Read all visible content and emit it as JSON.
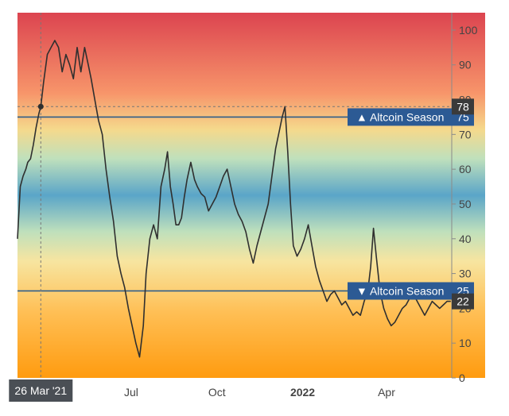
{
  "colors": {
    "series_line": "#2f2f2f",
    "marker_line": "#2e5c8a",
    "marker_label_bg": "#2c5a94",
    "value_badge_bg": "#3a3a3a",
    "crosshair": "#777777",
    "axis_text": "#444444",
    "gradient_top": "#dc4450",
    "gradient_mid": "#5aa5c8",
    "gradient_bottom": "#ff9b0f"
  },
  "chart_data": {
    "type": "line",
    "title": "",
    "xlabel": "",
    "ylabel": "",
    "ylim": [
      0,
      105
    ],
    "y_axis_side": "right",
    "yticks": [
      0,
      10,
      20,
      30,
      40,
      50,
      60,
      70,
      80,
      90,
      100
    ],
    "x_range": [
      "2021-03-01",
      "2022-06-10"
    ],
    "xticks": [
      {
        "date": "2021-07-01",
        "label": "Jul",
        "bold": false
      },
      {
        "date": "2021-10-01",
        "label": "Oct",
        "bold": false
      },
      {
        "date": "2022-01-01",
        "label": "2022",
        "bold": true
      },
      {
        "date": "2022-04-01",
        "label": "Apr",
        "bold": false
      }
    ],
    "background": "index gradient (red high, blue middle, orange low)",
    "grid": false,
    "legend": "none",
    "thresholds": [
      {
        "value": 75,
        "label": "▲ Altcoin Season",
        "value_label": "75"
      },
      {
        "value": 25,
        "label": "▼ Altcoin Season",
        "value_label": "25"
      }
    ],
    "crosshair": {
      "date": "2021-03-26",
      "date_label": "26 Mar '21",
      "value": 78,
      "value_label": "78"
    },
    "last_value": {
      "value": 22,
      "label": "22"
    },
    "series": [
      {
        "points": [
          [
            "2021-03-01",
            40
          ],
          [
            "2021-03-04",
            55
          ],
          [
            "2021-03-07",
            58
          ],
          [
            "2021-03-10",
            60
          ],
          [
            "2021-03-12",
            62
          ],
          [
            "2021-03-15",
            63
          ],
          [
            "2021-03-18",
            67
          ],
          [
            "2021-03-21",
            72
          ],
          [
            "2021-03-24",
            76
          ],
          [
            "2021-03-26",
            78
          ],
          [
            "2021-03-29",
            85
          ],
          [
            "2021-04-02",
            93
          ],
          [
            "2021-04-06",
            95
          ],
          [
            "2021-04-10",
            97
          ],
          [
            "2021-04-14",
            95
          ],
          [
            "2021-04-18",
            88
          ],
          [
            "2021-04-22",
            93
          ],
          [
            "2021-04-26",
            90
          ],
          [
            "2021-04-30",
            86
          ],
          [
            "2021-05-04",
            95
          ],
          [
            "2021-05-08",
            88
          ],
          [
            "2021-05-12",
            95
          ],
          [
            "2021-05-16",
            90
          ],
          [
            "2021-05-19",
            86
          ],
          [
            "2021-05-23",
            80
          ],
          [
            "2021-05-27",
            74
          ],
          [
            "2021-05-31",
            70
          ],
          [
            "2021-06-04",
            60
          ],
          [
            "2021-06-08",
            52
          ],
          [
            "2021-06-12",
            45
          ],
          [
            "2021-06-16",
            35
          ],
          [
            "2021-06-20",
            30
          ],
          [
            "2021-06-24",
            26
          ],
          [
            "2021-06-28",
            20
          ],
          [
            "2021-07-02",
            15
          ],
          [
            "2021-07-06",
            10
          ],
          [
            "2021-07-10",
            6
          ],
          [
            "2021-07-14",
            15
          ],
          [
            "2021-07-17",
            30
          ],
          [
            "2021-07-21",
            40
          ],
          [
            "2021-07-25",
            44
          ],
          [
            "2021-07-29",
            40
          ],
          [
            "2021-08-02",
            55
          ],
          [
            "2021-08-06",
            60
          ],
          [
            "2021-08-09",
            65
          ],
          [
            "2021-08-12",
            55
          ],
          [
            "2021-08-15",
            50
          ],
          [
            "2021-08-18",
            44
          ],
          [
            "2021-08-21",
            44
          ],
          [
            "2021-08-24",
            46
          ],
          [
            "2021-08-27",
            52
          ],
          [
            "2021-08-30",
            57
          ],
          [
            "2021-09-03",
            62
          ],
          [
            "2021-09-07",
            57
          ],
          [
            "2021-09-10",
            55
          ],
          [
            "2021-09-14",
            53
          ],
          [
            "2021-09-18",
            52
          ],
          [
            "2021-09-22",
            48
          ],
          [
            "2021-09-26",
            50
          ],
          [
            "2021-09-30",
            52
          ],
          [
            "2021-10-04",
            55
          ],
          [
            "2021-10-08",
            58
          ],
          [
            "2021-10-12",
            60
          ],
          [
            "2021-10-16",
            55
          ],
          [
            "2021-10-20",
            50
          ],
          [
            "2021-10-24",
            47
          ],
          [
            "2021-10-28",
            45
          ],
          [
            "2021-11-01",
            42
          ],
          [
            "2021-11-05",
            37
          ],
          [
            "2021-11-09",
            33
          ],
          [
            "2021-11-13",
            38
          ],
          [
            "2021-11-17",
            42
          ],
          [
            "2021-11-21",
            46
          ],
          [
            "2021-11-25",
            50
          ],
          [
            "2021-11-29",
            58
          ],
          [
            "2021-12-03",
            66
          ],
          [
            "2021-12-07",
            71
          ],
          [
            "2021-12-10",
            75
          ],
          [
            "2021-12-13",
            78
          ],
          [
            "2021-12-16",
            65
          ],
          [
            "2021-12-19",
            50
          ],
          [
            "2021-12-22",
            38
          ],
          [
            "2021-12-26",
            35
          ],
          [
            "2021-12-30",
            37
          ],
          [
            "2022-01-03",
            40
          ],
          [
            "2022-01-07",
            44
          ],
          [
            "2022-01-11",
            38
          ],
          [
            "2022-01-15",
            32
          ],
          [
            "2022-01-19",
            28
          ],
          [
            "2022-01-23",
            25
          ],
          [
            "2022-01-27",
            22
          ],
          [
            "2022-01-31",
            24
          ],
          [
            "2022-02-04",
            25
          ],
          [
            "2022-02-08",
            23
          ],
          [
            "2022-02-12",
            21
          ],
          [
            "2022-02-16",
            22
          ],
          [
            "2022-02-20",
            20
          ],
          [
            "2022-02-24",
            18
          ],
          [
            "2022-02-28",
            19
          ],
          [
            "2022-03-04",
            18
          ],
          [
            "2022-03-08",
            22
          ],
          [
            "2022-03-12",
            25
          ],
          [
            "2022-03-15",
            32
          ],
          [
            "2022-03-18",
            43
          ],
          [
            "2022-03-21",
            35
          ],
          [
            "2022-03-25",
            25
          ],
          [
            "2022-03-29",
            20
          ],
          [
            "2022-04-02",
            17
          ],
          [
            "2022-04-06",
            15
          ],
          [
            "2022-04-10",
            16
          ],
          [
            "2022-04-14",
            18
          ],
          [
            "2022-04-18",
            20
          ],
          [
            "2022-04-22",
            21
          ],
          [
            "2022-04-26",
            23
          ],
          [
            "2022-04-30",
            24
          ],
          [
            "2022-05-04",
            22
          ],
          [
            "2022-05-08",
            20
          ],
          [
            "2022-05-12",
            18
          ],
          [
            "2022-05-16",
            20
          ],
          [
            "2022-05-20",
            22
          ],
          [
            "2022-05-24",
            21
          ],
          [
            "2022-05-28",
            20
          ],
          [
            "2022-06-01",
            21
          ],
          [
            "2022-06-05",
            22
          ],
          [
            "2022-06-09",
            22
          ]
        ]
      }
    ]
  }
}
